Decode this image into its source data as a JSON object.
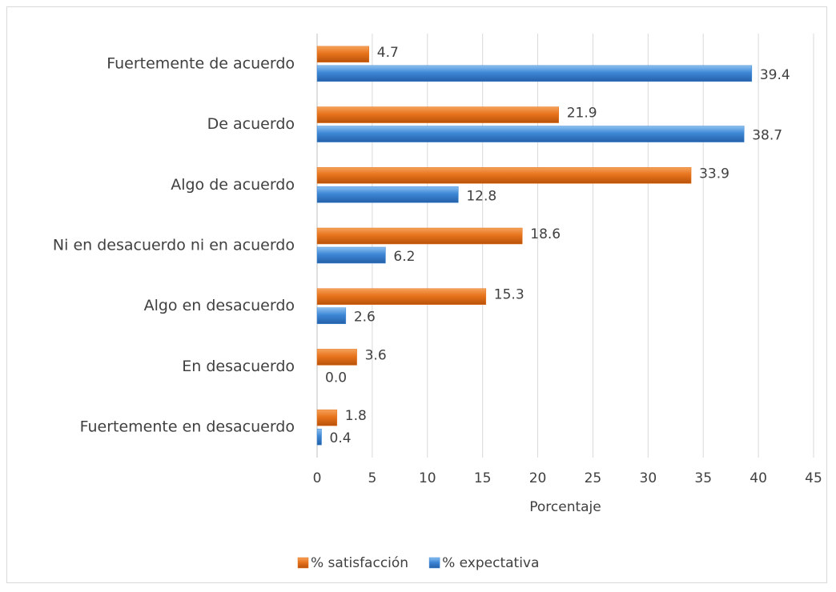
{
  "chart_data": {
    "type": "bar",
    "orientation": "horizontal",
    "categories": [
      "Fuertemente de acuerdo",
      "De acuerdo",
      "Algo de acuerdo",
      "Ni en desacuerdo ni en acuerdo",
      "Algo en desacuerdo",
      "En desacuerdo",
      "Fuertemente en desacuerdo"
    ],
    "series": [
      {
        "name": "% satisfacción",
        "color": "#e8731c",
        "values": [
          4.7,
          21.9,
          33.9,
          18.6,
          15.3,
          3.6,
          1.8
        ],
        "value_labels": [
          "4.7",
          "21.9",
          "33.9",
          "18.6",
          "15.3",
          "3.6",
          "1.8"
        ]
      },
      {
        "name": "% expectativa",
        "color": "#3d87d6",
        "values": [
          39.4,
          38.7,
          12.8,
          6.2,
          2.6,
          0,
          0.4
        ],
        "value_labels": [
          "39.4",
          "38.7",
          "12.8",
          "6.2",
          "2.6",
          "0.0",
          "0.4"
        ]
      }
    ],
    "xlabel": "Porcentaje",
    "xlim": [
      0,
      45
    ],
    "xticks": [
      0,
      5,
      10,
      15,
      20,
      25,
      30,
      35,
      40,
      45
    ],
    "grid": true,
    "legend": "bottom"
  }
}
